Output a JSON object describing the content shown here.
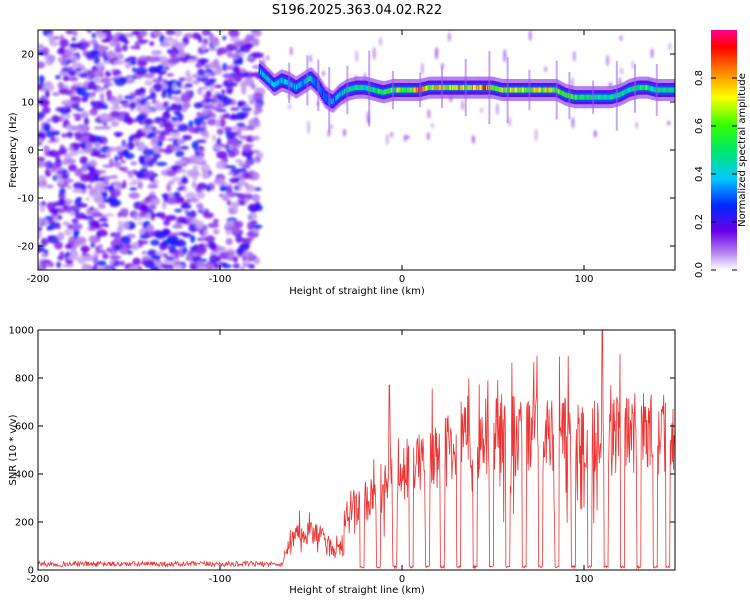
{
  "title": "S196.2025.363.04.02.R22",
  "chart_data": [
    {
      "type": "heatmap",
      "name": "spectrogram",
      "xlabel": "Height of straight line (km)",
      "ylabel": "Frequency (Hz)",
      "xlim": [
        -200,
        150
      ],
      "ylim": [
        -25,
        25
      ],
      "xticks": [
        -200,
        -100,
        0,
        100
      ],
      "yticks": [
        -20,
        -10,
        0,
        10,
        20
      ],
      "xtick_labels": [
        "-200",
        "-100",
        "0",
        "100"
      ],
      "ytick_labels": [
        "-20",
        "-10",
        "0",
        "10",
        "20"
      ],
      "colorbar": {
        "label": "Normalized spectral amplitude",
        "range": [
          0.0,
          1.0
        ],
        "ticks": [
          0.0,
          0.2,
          0.4,
          0.6,
          0.8
        ],
        "tick_labels": [
          "0.0",
          "0.2",
          "0.4",
          "0.6",
          "0.8"
        ]
      },
      "noise_region_x": [
        -200,
        -78
      ],
      "signal_track": {
        "x": [
          -78,
          -74,
          -70,
          -66,
          -62,
          -58,
          -54,
          -50,
          -46,
          -42,
          -38,
          -34,
          -30,
          -25,
          -20,
          -15,
          -10,
          -5,
          0,
          5,
          10,
          15,
          20,
          25,
          30,
          35,
          40,
          45,
          50,
          55,
          60,
          65,
          70,
          75,
          80,
          85,
          90,
          95,
          100,
          105,
          110,
          115,
          120,
          125,
          130,
          135,
          140,
          145,
          150
        ],
        "freq": [
          16.5,
          15.0,
          13.5,
          14.5,
          14.0,
          13.0,
          14.0,
          15.0,
          13.5,
          11.0,
          10.0,
          11.5,
          12.5,
          13.0,
          13.0,
          12.5,
          12.0,
          12.5,
          12.5,
          12.5,
          12.5,
          13.0,
          13.0,
          13.0,
          13.0,
          13.0,
          13.0,
          13.0,
          13.0,
          12.5,
          12.5,
          12.5,
          12.5,
          12.5,
          12.5,
          12.5,
          11.5,
          11.0,
          11.0,
          11.0,
          11.0,
          11.0,
          11.5,
          12.5,
          13.0,
          13.0,
          12.5,
          12.5,
          12.5
        ],
        "amplitude": [
          0.35,
          0.45,
          0.4,
          0.45,
          0.4,
          0.4,
          0.35,
          0.5,
          0.3,
          0.3,
          0.35,
          0.4,
          0.45,
          0.5,
          0.5,
          0.55,
          0.6,
          0.6,
          0.65,
          0.7,
          0.85,
          0.75,
          0.8,
          0.75,
          0.85,
          0.75,
          0.8,
          0.9,
          0.75,
          0.7,
          0.7,
          0.75,
          0.75,
          0.7,
          0.75,
          0.65,
          0.6,
          0.6,
          0.55,
          0.55,
          0.5,
          0.5,
          0.5,
          0.5,
          0.55,
          0.6,
          0.5,
          0.5,
          0.5
        ]
      }
    },
    {
      "type": "line",
      "name": "snr",
      "xlabel": "Height of straight line (km)",
      "ylabel": "SNR (10 * v/v)",
      "xlim": [
        -200,
        150
      ],
      "ylim": [
        0,
        1000
      ],
      "xticks": [
        -200,
        -100,
        0,
        100
      ],
      "yticks": [
        0,
        200,
        400,
        600,
        800,
        1000
      ],
      "xtick_labels": [
        "-200",
        "-100",
        "0",
        "100"
      ],
      "ytick_labels": [
        "0",
        "200",
        "400",
        "600",
        "800",
        "1000"
      ],
      "color": "#ee3333",
      "baseline_segment": {
        "x": [
          -200,
          -65
        ],
        "snr": [
          25,
          25
        ]
      },
      "envelope": {
        "x": [
          -65,
          -60,
          -55,
          -50,
          -45,
          -40,
          -35,
          -30,
          -25,
          -20,
          -15,
          -10,
          -5,
          0,
          10,
          20,
          30,
          40,
          50,
          60,
          70,
          80,
          90,
          100,
          110,
          120,
          130,
          140,
          150
        ],
        "snr": [
          60,
          150,
          180,
          170,
          160,
          120,
          80,
          280,
          300,
          320,
          360,
          390,
          420,
          460,
          500,
          540,
          570,
          600,
          610,
          620,
          630,
          630,
          620,
          600,
          620,
          630,
          640,
          630,
          620
        ]
      },
      "dropouts_x": [
        -22,
        -13,
        -4,
        5,
        14,
        22,
        31,
        40,
        49,
        58,
        67,
        76,
        85,
        94,
        103,
        112,
        121,
        130,
        139,
        146
      ],
      "peaks": [
        {
          "x": -7,
          "snr": 770
        },
        {
          "x": 110,
          "snr": 1010
        },
        {
          "x": 120,
          "snr": 900
        }
      ]
    }
  ]
}
